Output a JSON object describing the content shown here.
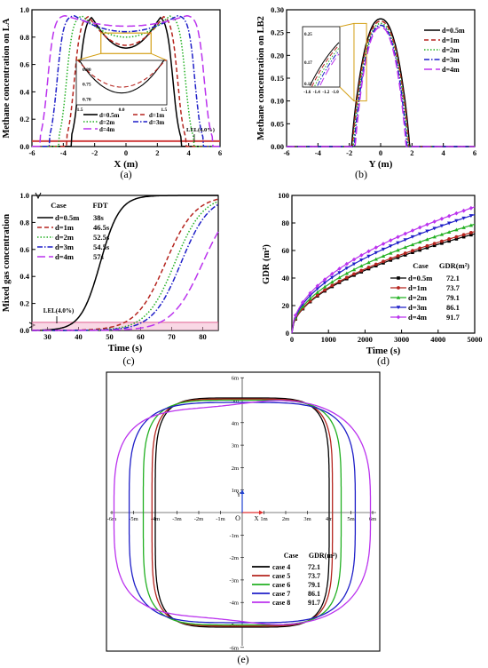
{
  "chart_data": [
    {
      "panel": "(a)",
      "type": "line",
      "xlabel": "X (m)",
      "ylabel": "Methane concentration on LA",
      "xlim": [
        -6,
        6
      ],
      "ylim": [
        0.0,
        1.0
      ],
      "xticks": [
        "-6",
        "-4",
        "-2",
        "0",
        "2",
        "4",
        "6"
      ],
      "yticks": [
        "0.0",
        "0.2",
        "0.4",
        "0.6",
        "0.8",
        "1.0"
      ],
      "annotation": "LEL(4.0%)",
      "lel": 0.04,
      "inset": {
        "xticks": [
          "-1.5",
          "0.0",
          "1.5"
        ],
        "yticks": [
          "0.80",
          "0.75",
          "0.70"
        ]
      },
      "legend": {
        "placement": "bottom-center",
        "entries": [
          "d=0.5m",
          "d=1m",
          "d=2m",
          "d=3m",
          "d=4m"
        ]
      },
      "series": [
        {
          "name": "d=0.5m",
          "color": "#000000",
          "dash": "solid",
          "edge": 3.0,
          "peak": 2.2,
          "center": 0.72
        },
        {
          "name": "d=1m",
          "color": "#b5241e",
          "dash": "dash",
          "edge": 3.3,
          "peak": 2.4,
          "center": 0.74
        },
        {
          "name": "d=2m",
          "color": "#22b022",
          "dash": "dot",
          "edge": 3.8,
          "peak": 2.8,
          "center": 0.8
        },
        {
          "name": "d=3m",
          "color": "#1f1fc8",
          "dash": "dashdot",
          "edge": 4.4,
          "peak": 3.3,
          "center": 0.84
        },
        {
          "name": "d=4m",
          "color": "#bb33ee",
          "dash": "longdash",
          "edge": 5.0,
          "peak": 3.9,
          "center": 0.88
        }
      ]
    },
    {
      "panel": "(b)",
      "type": "line",
      "xlabel": "Y (m)",
      "ylabel": "Methane concentration on LB2",
      "xlim": [
        -6,
        6
      ],
      "ylim": [
        0.0,
        0.3
      ],
      "xticks": [
        "-6",
        "-4",
        "-2",
        "0",
        "2",
        "4",
        "6"
      ],
      "yticks": [
        "0.00",
        "0.05",
        "0.10",
        "0.15",
        "0.20",
        "0.25",
        "0.30"
      ],
      "inset": {
        "xticks": [
          "-1.6",
          "-1.4",
          "-1.2",
          "-1.0"
        ],
        "yticks": [
          "0.25",
          "0.17",
          "0.11"
        ]
      },
      "legend": {
        "placement": "top-right",
        "entries": [
          "d=0.5m",
          "d=1m",
          "d=2m",
          "d=3m",
          "d=4m"
        ]
      },
      "series": [
        {
          "name": "d=0.5m",
          "color": "#000000",
          "dash": "solid",
          "peak": 0.28,
          "width": 1.85
        },
        {
          "name": "d=1m",
          "color": "#b5241e",
          "dash": "dash",
          "peak": 0.275,
          "width": 1.8
        },
        {
          "name": "d=2m",
          "color": "#22b022",
          "dash": "dot",
          "peak": 0.27,
          "width": 1.74
        },
        {
          "name": "d=3m",
          "color": "#1f1fc8",
          "dash": "dashdot",
          "peak": 0.266,
          "width": 1.68
        },
        {
          "name": "d=4m",
          "color": "#bb33ee",
          "dash": "longdash",
          "peak": 0.262,
          "width": 1.62
        }
      ]
    },
    {
      "panel": "(c)",
      "type": "line",
      "xlabel": "Time (s)",
      "ylabel": "Mixed gas concentration",
      "xlim": [
        25,
        85
      ],
      "ylim": [
        0.0,
        1.0
      ],
      "xticks": [
        "30",
        "40",
        "50",
        "60",
        "70",
        "80"
      ],
      "yticks": [
        "0.0",
        "0.2",
        "0.4",
        "0.6",
        "0.8",
        "1.0"
      ],
      "annotation": "LEL(4.0%)",
      "lel": 0.04,
      "legend": {
        "placement": "top-left",
        "header": [
          "Case",
          "FDT"
        ],
        "entries": [
          "d=0.5m",
          "d=1m",
          "d=2m",
          "d=3m",
          "d=4m"
        ],
        "values": [
          "38s",
          "46.5s",
          "52.5s",
          "54.5s",
          "57s"
        ]
      },
      "series": [
        {
          "name": "d=0.5m",
          "color": "#000000",
          "dash": "solid",
          "mid": 47,
          "k": 0.32
        },
        {
          "name": "d=1m",
          "color": "#b5241e",
          "dash": "dash",
          "mid": 68,
          "k": 0.21
        },
        {
          "name": "d=2m",
          "color": "#22b022",
          "dash": "dot",
          "mid": 71,
          "k": 0.22
        },
        {
          "name": "d=3m",
          "color": "#1f1fc8",
          "dash": "dashdot",
          "mid": 73,
          "k": 0.22
        },
        {
          "name": "d=4m",
          "color": "#bb33ee",
          "dash": "longdash",
          "mid": 80,
          "k": 0.2
        }
      ]
    },
    {
      "panel": "(d)",
      "type": "line",
      "xlabel": "Time (s)",
      "ylabel": "GDR (m²)",
      "xlim": [
        0,
        5000
      ],
      "ylim": [
        0,
        100
      ],
      "xticks": [
        "0",
        "1000",
        "2000",
        "3000",
        "4000",
        "5000"
      ],
      "yticks": [
        "0",
        "20",
        "40",
        "60",
        "80",
        "100"
      ],
      "legend": {
        "placement": "bottom-right",
        "header": [
          "Case",
          "GDR(m²)"
        ],
        "entries": [
          "d=0.5m",
          "d=1m",
          "d=2m",
          "d=3m",
          "d=4m"
        ],
        "values": [
          "72.1",
          "73.7",
          "79.1",
          "86.1",
          "91.7"
        ]
      },
      "series": [
        {
          "name": "d=0.5m",
          "color": "#000000",
          "marker": "square",
          "final": 72.1
        },
        {
          "name": "d=1m",
          "color": "#b5241e",
          "marker": "circle",
          "final": 73.7
        },
        {
          "name": "d=2m",
          "color": "#22b022",
          "marker": "triangle",
          "final": 79.1
        },
        {
          "name": "d=3m",
          "color": "#1f1fc8",
          "marker": "triangle-down",
          "final": 86.1
        },
        {
          "name": "d=4m",
          "color": "#bb33ee",
          "marker": "diamond",
          "final": 91.7
        }
      ]
    },
    {
      "panel": "(e)",
      "type": "line",
      "xlim": [
        -6.3,
        6.3
      ],
      "ylim": [
        -6.3,
        6.3
      ],
      "xticks": [
        "-6m",
        "-5m",
        "-4m",
        "-3m",
        "-2m",
        "-1m",
        "1m",
        "2m",
        "3m",
        "4m",
        "5m",
        "6m"
      ],
      "yticks": [
        "6m",
        "5m",
        "4m",
        "3m",
        "2m",
        "1m",
        "-1m",
        "-2m",
        "-3m",
        "-4m",
        "-5m",
        "-6m"
      ],
      "origin_label": "O",
      "x_axis_label": "X",
      "y_axis_label": "Y",
      "legend": {
        "placement": "bottom-right",
        "header": [
          "Case",
          "GDR(m²)"
        ],
        "entries": [
          "case 4",
          "case 5",
          "case 6",
          "case 7",
          "case 8"
        ],
        "values": [
          "72.1",
          "73.7",
          "79.1",
          "86.1",
          "91.7"
        ]
      },
      "series": [
        {
          "name": "case 4",
          "color": "#000000",
          "rx": 4.0,
          "ry": 5.1,
          "n": 5.0
        },
        {
          "name": "case 5",
          "color": "#b5241e",
          "rx": 4.15,
          "ry": 5.05,
          "n": 5.0
        },
        {
          "name": "case 6",
          "color": "#22b022",
          "rx": 4.55,
          "ry": 5.0,
          "n": 4.6
        },
        {
          "name": "case 7",
          "color": "#1f1fc8",
          "rx": 5.2,
          "ry": 4.9,
          "n": 4.0
        },
        {
          "name": "case 8",
          "color": "#bb33ee",
          "rx": 5.9,
          "ry": 4.85,
          "n": 3.4
        }
      ]
    }
  ],
  "panel_labels": [
    "(a)",
    "(b)",
    "(c)",
    "(d)",
    "(e)"
  ]
}
